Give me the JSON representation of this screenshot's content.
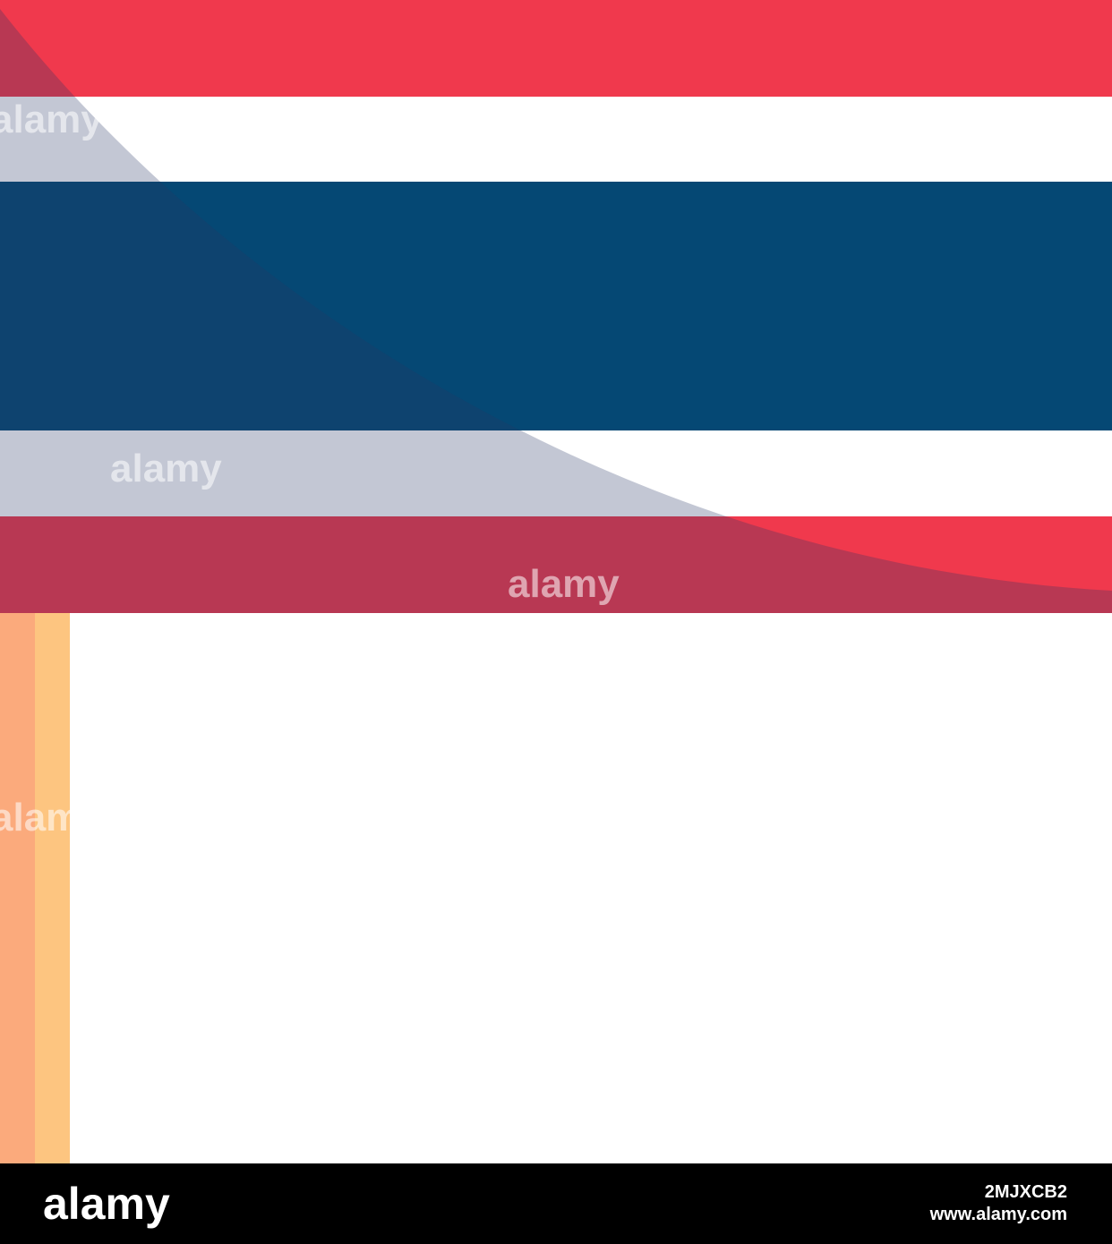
{
  "watermarks": [
    "alamy",
    "alamy",
    "alamy",
    "alamy"
  ],
  "footer": {
    "logo": "alamy",
    "image_id": "2MJXCB2",
    "url": "www.alamy.com"
  }
}
